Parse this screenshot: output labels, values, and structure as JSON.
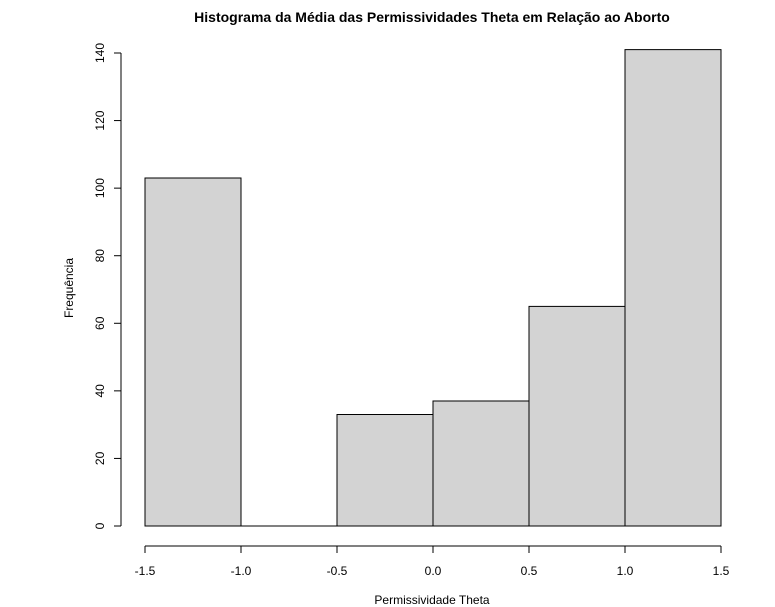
{
  "chart_data": {
    "type": "bar",
    "title": "Histograma da Média das Permissividades Theta em Relação ao Aborto",
    "xlabel": "Permissividade Theta",
    "ylabel": "Frequência",
    "bins": [
      {
        "from": -1.5,
        "to": -1.0,
        "count": 103
      },
      {
        "from": -1.0,
        "to": -0.5,
        "count": 0
      },
      {
        "from": -0.5,
        "to": 0.0,
        "count": 33
      },
      {
        "from": 0.0,
        "to": 0.5,
        "count": 37
      },
      {
        "from": 0.5,
        "to": 1.0,
        "count": 65
      },
      {
        "from": 1.0,
        "to": 1.5,
        "count": 141
      }
    ],
    "xlim": [
      -1.5,
      1.5
    ],
    "ylim": [
      0,
      140
    ],
    "xticks": [
      "-1.5",
      "-1.0",
      "-0.5",
      "0.0",
      "0.5",
      "1.0",
      "1.5"
    ],
    "yticks": [
      "0",
      "20",
      "40",
      "60",
      "80",
      "100",
      "120",
      "140"
    ],
    "bar_color": "#d3d3d3",
    "grid": false
  }
}
